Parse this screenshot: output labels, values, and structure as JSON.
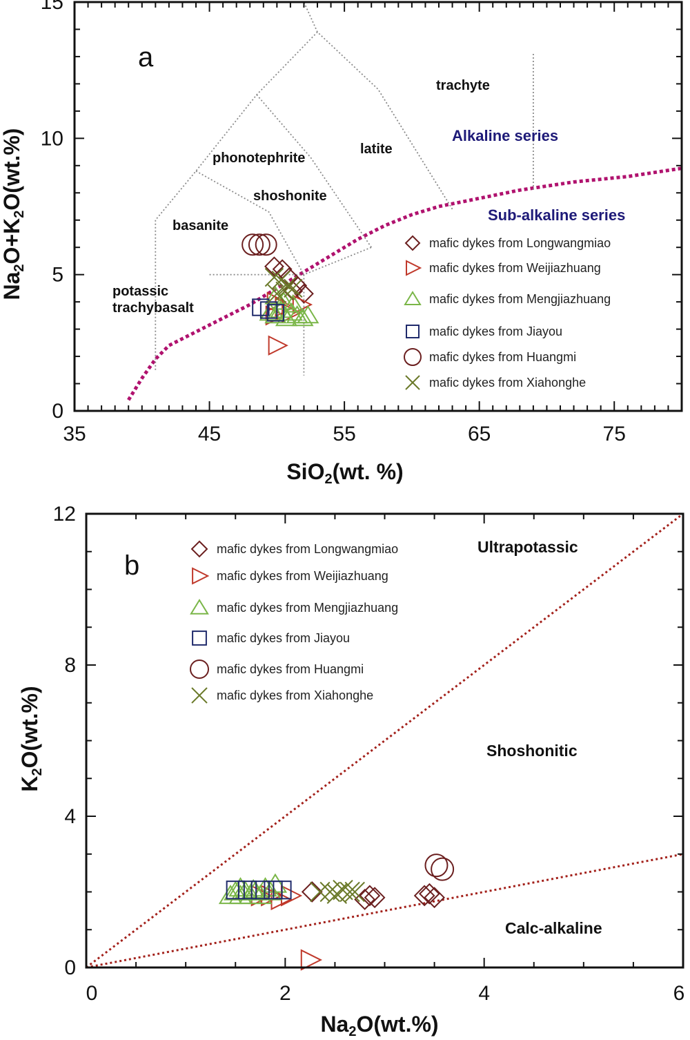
{
  "chart_data": [
    {
      "type": "scatter",
      "panel": "a",
      "xlabel": {
        "main": "SiO",
        "sub": "2",
        "tail": "(wt. %)"
      },
      "ylabel": {
        "p1": "Na",
        "s1": "2",
        "p2": "O+K",
        "s2": "2",
        "p3": "O(wt.%)"
      },
      "xlim": [
        35,
        80
      ],
      "ylim": [
        0,
        15
      ],
      "xticks": [
        "35",
        "45",
        "55",
        "65",
        "75"
      ],
      "yticks": [
        "0",
        "5",
        "10",
        "15"
      ],
      "field_labels": [
        "trachyte",
        "latite",
        "phonotephrite",
        "shoshonite",
        "basanite",
        "potassic",
        "trachybasalt"
      ],
      "series_labels": [
        "Alkaline series",
        "Sub-alkaline series"
      ],
      "legend": [
        {
          "label": "mafic dykes from Longwangmiao",
          "marker": "diamond",
          "color": "#6b1f1f"
        },
        {
          "label": "mafic dykes from Weijiazhuang",
          "marker": "triangle-right",
          "color": "#c0392b"
        },
        {
          "label": "mafic dykes from Mengjiazhuang",
          "marker": "triangle-up",
          "color": "#7ab648"
        },
        {
          "label": "mafic dykes from Jiayou",
          "marker": "square",
          "color": "#1f2a6b"
        },
        {
          "label": "mafic dykes from Huangmi",
          "marker": "circle",
          "color": "#6b1f1f"
        },
        {
          "label": "mafic dykes from Xiahonghe",
          "marker": "cross",
          "color": "#6b7a2a"
        }
      ],
      "series": [
        {
          "marker": "diamond",
          "points": [
            [
              49.8,
              5.3
            ],
            [
              50.4,
              5.2
            ],
            [
              50.9,
              4.9
            ],
            [
              51.5,
              4.6
            ],
            [
              52.0,
              4.3
            ],
            [
              51.2,
              4.4
            ]
          ]
        },
        {
          "marker": "triangle-right",
          "points": [
            [
              49.9,
              4.0
            ],
            [
              50.5,
              3.8
            ],
            [
              51.0,
              3.6
            ],
            [
              49.8,
              3.5
            ],
            [
              51.8,
              3.9
            ],
            [
              50.0,
              2.4
            ]
          ]
        },
        {
          "marker": "triangle-up",
          "points": [
            [
              49.5,
              3.6
            ],
            [
              49.9,
              3.5
            ],
            [
              50.3,
              3.7
            ],
            [
              50.7,
              3.4
            ],
            [
              51.1,
              3.6
            ],
            [
              51.5,
              3.5
            ],
            [
              51.9,
              3.4
            ],
            [
              52.3,
              3.5
            ],
            [
              50.5,
              4.0
            ],
            [
              51.2,
              3.9
            ],
            [
              49.9,
              4.2
            ]
          ]
        },
        {
          "marker": "square",
          "points": [
            [
              48.8,
              3.8
            ],
            [
              49.4,
              3.7
            ],
            [
              49.9,
              3.6
            ]
          ]
        },
        {
          "marker": "circle",
          "points": [
            [
              48.2,
              6.1
            ],
            [
              48.7,
              6.1
            ],
            [
              49.2,
              6.1
            ]
          ]
        },
        {
          "marker": "cross",
          "points": [
            [
              49.8,
              4.9
            ],
            [
              50.3,
              4.8
            ],
            [
              50.8,
              4.6
            ],
            [
              51.2,
              4.5
            ],
            [
              50.0,
              4.3
            ],
            [
              50.6,
              4.4
            ]
          ]
        }
      ],
      "boundaries": [
        {
          "name": "alkaline-subalkaline-divider",
          "style": "thick-magenta",
          "points": [
            [
              39,
              0.4
            ],
            [
              40,
              1.2
            ],
            [
              41,
              1.9
            ],
            [
              42,
              2.4
            ],
            [
              44,
              2.9
            ],
            [
              46,
              3.4
            ],
            [
              48,
              3.9
            ],
            [
              50,
              4.5
            ],
            [
              52,
              5.1
            ],
            [
              54,
              5.7
            ],
            [
              56,
              6.3
            ],
            [
              58,
              6.8
            ],
            [
              60,
              7.2
            ],
            [
              62,
              7.5
            ],
            [
              65,
              7.8
            ],
            [
              68,
              8.1
            ],
            [
              72,
              8.4
            ],
            [
              76,
              8.6
            ],
            [
              80,
              8.9
            ]
          ]
        },
        {
          "name": "field-lines-1",
          "style": "gray-dotted",
          "points": [
            [
              41,
              1.5
            ],
            [
              41,
              7
            ],
            [
              44,
              8.8
            ],
            [
              48.5,
              11.6
            ],
            [
              53,
              13.9
            ],
            [
              57.5,
              11.8
            ],
            [
              63,
              7.4
            ]
          ]
        },
        {
          "name": "field-lines-2",
          "style": "gray-dotted",
          "points": [
            [
              44,
              8.8
            ],
            [
              49.4,
              7.3
            ],
            [
              52,
              5
            ],
            [
              52,
              1.3
            ]
          ]
        },
        {
          "name": "field-lines-3",
          "style": "gray-dotted",
          "points": [
            [
              48.5,
              11.6
            ],
            [
              52.5,
              9.3
            ],
            [
              57,
              6
            ]
          ]
        },
        {
          "name": "field-lines-4",
          "style": "gray-dotted",
          "points": [
            [
              45,
              5
            ],
            [
              52,
              5
            ],
            [
              57,
              6
            ]
          ]
        },
        {
          "name": "field-lines-5",
          "style": "gray-dotted",
          "points": [
            [
              53,
              13.9
            ],
            [
              52,
              15
            ],
            [
              50,
              15.5
            ]
          ]
        },
        {
          "name": "field-lines-6",
          "style": "gray-dotted",
          "points": [
            [
              69,
              13.1
            ],
            [
              69,
              8.1
            ]
          ]
        }
      ]
    },
    {
      "type": "scatter",
      "panel": "b",
      "xlabel": {
        "main": "Na",
        "sub": "2",
        "tail": "O(wt.%)"
      },
      "ylabel": {
        "p1": "K",
        "s1": "2",
        "p2": "O(wt.%)"
      },
      "xlim": [
        0,
        6
      ],
      "ylim": [
        0,
        12
      ],
      "xticks": [
        "0",
        "2",
        "4",
        "6"
      ],
      "yticks": [
        "0",
        "4",
        "8",
        "12"
      ],
      "region_labels": [
        "Ultrapotassic",
        "Shoshonitic",
        "Calc-alkaline"
      ],
      "legend": [
        {
          "label": "mafic dykes from Longwangmiao",
          "marker": "diamond",
          "color": "#6b1f1f"
        },
        {
          "label": "mafic dykes from Weijiazhuang",
          "marker": "triangle-right",
          "color": "#c0392b"
        },
        {
          "label": "mafic dykes from Mengjiazhuang",
          "marker": "triangle-up",
          "color": "#7ab648"
        },
        {
          "label": "mafic dykes from Jiayou",
          "marker": "square",
          "color": "#1f2a6b"
        },
        {
          "label": "mafic dykes from Huangmi",
          "marker": "circle",
          "color": "#6b1f1f"
        },
        {
          "label": "mafic dykes from Xiahonghe",
          "marker": "cross",
          "color": "#6b7a2a"
        }
      ],
      "series": [
        {
          "marker": "diamond",
          "points": [
            [
              2.27,
              2.0
            ],
            [
              2.8,
              1.8
            ],
            [
              2.85,
              1.9
            ],
            [
              2.9,
              1.85
            ],
            [
              3.4,
              1.9
            ],
            [
              3.45,
              1.95
            ],
            [
              3.5,
              1.85
            ]
          ]
        },
        {
          "marker": "triangle-right",
          "points": [
            [
              1.75,
              1.9
            ],
            [
              1.85,
              1.9
            ],
            [
              1.95,
              1.8
            ],
            [
              2.05,
              1.9
            ],
            [
              2.25,
              0.2
            ]
          ]
        },
        {
          "marker": "triangle-up",
          "points": [
            [
              1.45,
              1.9
            ],
            [
              1.5,
              2.0
            ],
            [
              1.55,
              1.9
            ],
            [
              1.6,
              2.0
            ],
            [
              1.65,
              1.9
            ],
            [
              1.7,
              2.0
            ],
            [
              1.75,
              1.9
            ],
            [
              1.8,
              2.1
            ],
            [
              1.85,
              2.0
            ],
            [
              1.9,
              2.2
            ],
            [
              1.55,
              2.1
            ],
            [
              1.68,
              2.05
            ]
          ]
        },
        {
          "marker": "square",
          "points": [
            [
              1.5,
              2.05
            ],
            [
              1.62,
              2.05
            ],
            [
              1.75,
              2.05
            ],
            [
              1.88,
              2.05
            ],
            [
              1.97,
              2.05
            ]
          ]
        },
        {
          "marker": "circle",
          "points": [
            [
              3.52,
              2.7
            ],
            [
              3.58,
              2.6
            ]
          ]
        },
        {
          "marker": "cross",
          "points": [
            [
              2.35,
              2.0
            ],
            [
              2.45,
              2.0
            ],
            [
              2.52,
              1.95
            ],
            [
              2.58,
              2.05
            ],
            [
              2.65,
              2.0
            ],
            [
              2.7,
              2.0
            ]
          ]
        }
      ],
      "boundaries": [
        {
          "name": "ultrapotassic-shoshonitic-line",
          "points": [
            [
              0,
              0
            ],
            [
              6,
              12
            ]
          ]
        },
        {
          "name": "shoshonitic-calcalkaline-line",
          "points": [
            [
              0,
              0
            ],
            [
              6,
              3
            ]
          ]
        }
      ]
    }
  ]
}
